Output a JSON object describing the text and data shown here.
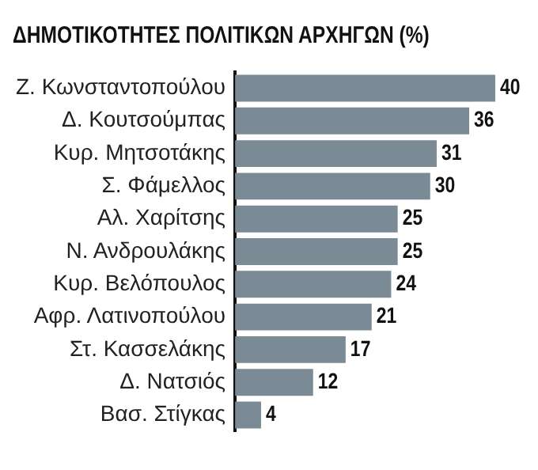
{
  "chart_data": {
    "type": "bar",
    "orientation": "horizontal",
    "title": "ΔΗΜΟΤΙΚΟΤΗΤΕΣ ΠΟΛΙΤΙΚΩΝ ΑΡΧΗΓΩΝ (%)",
    "categories": [
      "Ζ. Κωνσταντοπούλου",
      "Δ. Κουτσούμπας",
      "Κυρ. Μητσοτάκης",
      "Σ. Φάμελλος",
      "Αλ. Χαρίτσης",
      "Ν. Ανδρουλάκης",
      "Κυρ. Βελόπουλος",
      "Αφρ. Λατινοπούλου",
      "Στ. Κασσελάκης",
      "Δ. Νατσιός",
      "Βασ. Στίγκας"
    ],
    "values": [
      40,
      36,
      31,
      30,
      25,
      25,
      24,
      21,
      17,
      12,
      4
    ],
    "color": "#7b8b95",
    "data_labels": true
  }
}
